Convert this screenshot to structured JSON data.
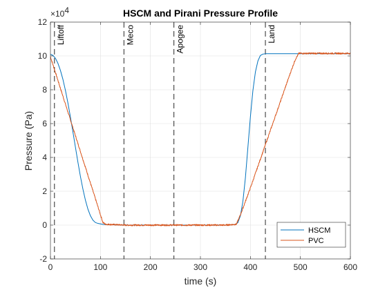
{
  "chart_data": {
    "type": "line",
    "title": "HSCM and Pirani Pressure Profile",
    "xlabel": "time (s)",
    "ylabel": "Pressure (Pa)",
    "xlim": [
      0,
      600
    ],
    "ylim": [
      -20000,
      120000
    ],
    "x_ticks": [
      0,
      100,
      200,
      300,
      400,
      500,
      600
    ],
    "y_ticks": [
      -20000,
      0,
      20000,
      40000,
      60000,
      80000,
      100000,
      120000
    ],
    "y_tick_labels": [
      "-2",
      "0",
      "2",
      "4",
      "6",
      "8",
      "10",
      "12"
    ],
    "y_exponent_base": "×10",
    "y_exponent_power": "4",
    "grid": true,
    "legend_position": "bottom-right",
    "events": [
      {
        "label": "Liftoff",
        "x": 8
      },
      {
        "label": "Meco",
        "x": 147
      },
      {
        "label": "Apogee",
        "x": 247
      },
      {
        "label": "Land",
        "x": 430
      }
    ],
    "series": [
      {
        "name": "HSCM",
        "color": "#0072BD",
        "x": [
          0,
          5,
          10,
          15,
          20,
          25,
          30,
          35,
          40,
          45,
          50,
          55,
          60,
          65,
          70,
          75,
          80,
          85,
          90,
          95,
          100,
          105,
          110,
          150,
          200,
          250,
          300,
          350,
          370,
          375,
          380,
          385,
          390,
          395,
          400,
          405,
          410,
          415,
          420,
          425,
          430,
          500,
          600
        ],
        "y": [
          101000,
          100300,
          98600,
          95600,
          91400,
          86100,
          79600,
          72100,
          63800,
          55000,
          46000,
          37100,
          28700,
          21200,
          14700,
          9400,
          5500,
          2900,
          1500,
          1000,
          700,
          400,
          300,
          0,
          0,
          0,
          0,
          0,
          300,
          1500,
          5500,
          14000,
          28000,
          46000,
          64000,
          79500,
          90500,
          97000,
          100300,
          101100,
          101300,
          101300,
          101300
        ]
      },
      {
        "name": "PVC",
        "color": "#D95319",
        "noisy": true,
        "x": [
          0,
          105,
          110,
          150,
          200,
          250,
          300,
          350,
          372,
          380,
          390,
          400,
          410,
          420,
          430,
          440,
          450,
          460,
          470,
          480,
          490,
          497,
          500,
          550,
          600
        ],
        "y": [
          99500,
          1500,
          500,
          0,
          0,
          0,
          0,
          0,
          500,
          6000,
          14000,
          22000,
          30500,
          39000,
          47500,
          56000,
          64500,
          73000,
          81500,
          90000,
          98000,
          101500,
          101500,
          101500,
          101500
        ]
      }
    ]
  }
}
